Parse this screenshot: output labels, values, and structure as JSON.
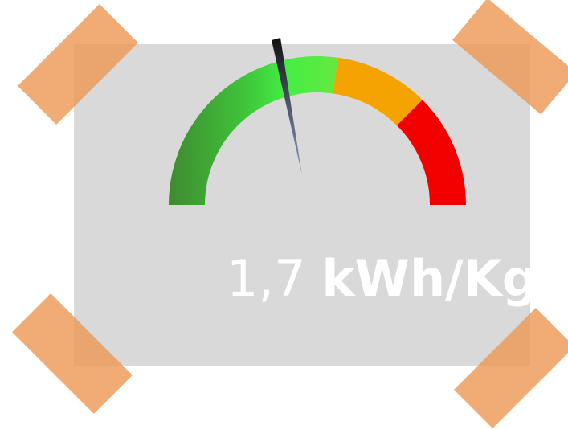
{
  "gauge": {
    "value_text": "1,7",
    "unit": "kWh/Kg"
  }
}
